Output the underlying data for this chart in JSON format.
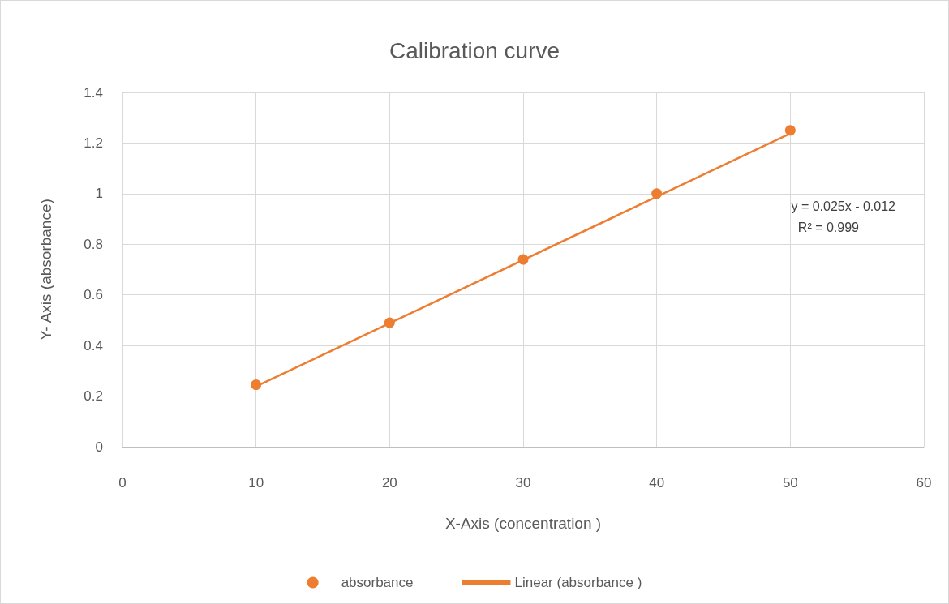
{
  "chart_data": {
    "type": "scatter",
    "title": "Calibration curve",
    "xlabel": "X-Axis (concentration )",
    "ylabel": "Y- Axis (absorbance)",
    "x": [
      10,
      20,
      30,
      40,
      50
    ],
    "series": [
      {
        "name": "absorbance",
        "color": "#ed7d31",
        "values": [
          0.245,
          0.49,
          0.74,
          1.0,
          1.25
        ],
        "marker": "circle"
      },
      {
        "name": "Linear (absorbance )",
        "type": "line",
        "color": "#ed7d31",
        "x": [
          10,
          50
        ],
        "values": [
          0.238,
          1.238
        ],
        "marker": "none",
        "line_style": "solid"
      }
    ],
    "annotations": [
      "y = 0.025x - 0.012",
      "R² = 0.999"
    ],
    "xlim": [
      0,
      60
    ],
    "xticks": [
      0,
      10,
      20,
      30,
      40,
      50,
      60
    ],
    "ylim": [
      0,
      1.4
    ],
    "yticks": [
      0,
      0.2,
      0.4,
      0.6,
      0.8,
      1,
      1.2,
      1.4
    ],
    "grid": true,
    "legend": "bottom"
  }
}
